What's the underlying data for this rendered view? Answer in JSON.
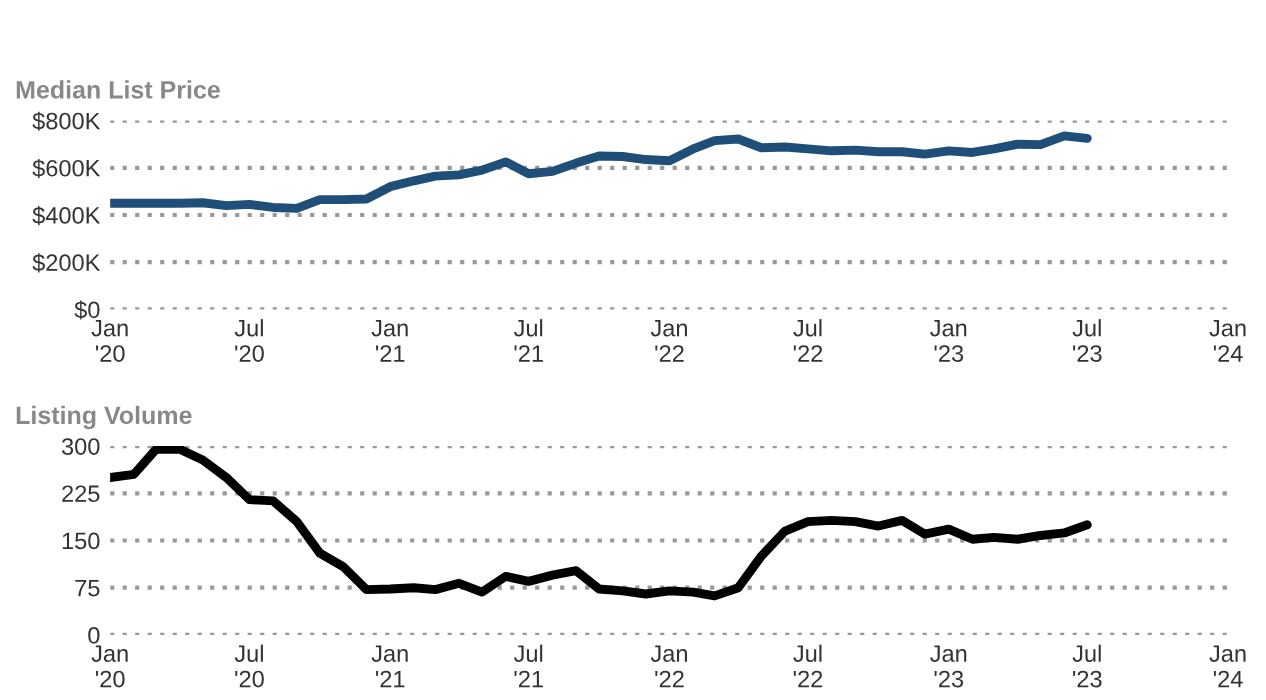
{
  "chart_data": [
    {
      "type": "line",
      "title": "Median List Price",
      "x": [
        "2020-01",
        "2020-02",
        "2020-03",
        "2020-04",
        "2020-05",
        "2020-06",
        "2020-07",
        "2020-08",
        "2020-09",
        "2020-10",
        "2020-11",
        "2020-12",
        "2021-01",
        "2021-02",
        "2021-03",
        "2021-04",
        "2021-05",
        "2021-06",
        "2021-07",
        "2021-08",
        "2021-09",
        "2021-10",
        "2021-11",
        "2021-12",
        "2022-01",
        "2022-02",
        "2022-03",
        "2022-04",
        "2022-05",
        "2022-06",
        "2022-07",
        "2022-08",
        "2022-09",
        "2022-10",
        "2022-11",
        "2022-12",
        "2023-01",
        "2023-02",
        "2023-03",
        "2023-04",
        "2023-05",
        "2023-06",
        "2023-07"
      ],
      "series": [
        {
          "color": "#1f4e79",
          "values": [
            450000,
            450000,
            450000,
            450000,
            452000,
            440000,
            445000,
            432000,
            428000,
            465000,
            465000,
            468000,
            520000,
            545000,
            565000,
            570000,
            590000,
            625000,
            575000,
            585000,
            620000,
            650000,
            648000,
            635000,
            630000,
            680000,
            715000,
            722000,
            685000,
            688000,
            680000,
            672000,
            675000,
            668000,
            668000,
            658000,
            672000,
            665000,
            680000,
            700000,
            698000,
            735000,
            725000
          ]
        }
      ],
      "xlim": [
        "2020-01",
        "2024-01"
      ],
      "xticks": [
        {
          "value": "2020-01",
          "label": "Jan\n'20"
        },
        {
          "value": "2020-07",
          "label": "Jul\n'20"
        },
        {
          "value": "2021-01",
          "label": "Jan\n'21"
        },
        {
          "value": "2021-07",
          "label": "Jul\n'21"
        },
        {
          "value": "2022-01",
          "label": "Jan\n'22"
        },
        {
          "value": "2022-07",
          "label": "Jul\n'22"
        },
        {
          "value": "2023-01",
          "label": "Jan\n'23"
        },
        {
          "value": "2023-07",
          "label": "Jul\n'23"
        },
        {
          "value": "2024-01",
          "label": "Jan\n'24"
        }
      ],
      "ylim": [
        0,
        800000
      ],
      "yticks": [
        {
          "value": 0,
          "label": "$0"
        },
        {
          "value": 200000,
          "label": "$200K"
        },
        {
          "value": 400000,
          "label": "$400K"
        },
        {
          "value": 600000,
          "label": "$600K"
        },
        {
          "value": 800000,
          "label": "$800K"
        }
      ],
      "grid": "y",
      "marker": "none",
      "line_style": "solid"
    },
    {
      "type": "line",
      "title": "Listing Volume",
      "x": [
        "2020-01",
        "2020-02",
        "2020-03",
        "2020-04",
        "2020-05",
        "2020-06",
        "2020-07",
        "2020-08",
        "2020-09",
        "2020-10",
        "2020-11",
        "2020-12",
        "2021-01",
        "2021-02",
        "2021-03",
        "2021-04",
        "2021-05",
        "2021-06",
        "2021-07",
        "2021-08",
        "2021-09",
        "2021-10",
        "2021-11",
        "2021-12",
        "2022-01",
        "2022-02",
        "2022-03",
        "2022-04",
        "2022-05",
        "2022-06",
        "2022-07",
        "2022-08",
        "2022-09",
        "2022-10",
        "2022-11",
        "2022-12",
        "2023-01",
        "2023-02",
        "2023-03",
        "2023-04",
        "2023-05",
        "2023-06",
        "2023-07"
      ],
      "series": [
        {
          "color": "#000000",
          "values": [
            250,
            255,
            295,
            295,
            278,
            250,
            215,
            213,
            180,
            130,
            108,
            72,
            73,
            75,
            72,
            82,
            68,
            93,
            85,
            95,
            102,
            73,
            70,
            65,
            70,
            68,
            62,
            75,
            125,
            165,
            180,
            182,
            180,
            173,
            182,
            160,
            168,
            152,
            155,
            152,
            158,
            162,
            175
          ]
        }
      ],
      "xlim": [
        "2020-01",
        "2024-01"
      ],
      "xticks": [
        {
          "value": "2020-01",
          "label": "Jan\n'20"
        },
        {
          "value": "2020-07",
          "label": "Jul\n'20"
        },
        {
          "value": "2021-01",
          "label": "Jan\n'21"
        },
        {
          "value": "2021-07",
          "label": "Jul\n'21"
        },
        {
          "value": "2022-01",
          "label": "Jan\n'22"
        },
        {
          "value": "2022-07",
          "label": "Jul\n'22"
        },
        {
          "value": "2023-01",
          "label": "Jan\n'23"
        },
        {
          "value": "2023-07",
          "label": "Jul\n'23"
        },
        {
          "value": "2024-01",
          "label": "Jan\n'24"
        }
      ],
      "ylim": [
        0,
        300
      ],
      "yticks": [
        0,
        75,
        150,
        225,
        300
      ],
      "grid": "y",
      "marker": "none",
      "line_style": "solid"
    }
  ]
}
